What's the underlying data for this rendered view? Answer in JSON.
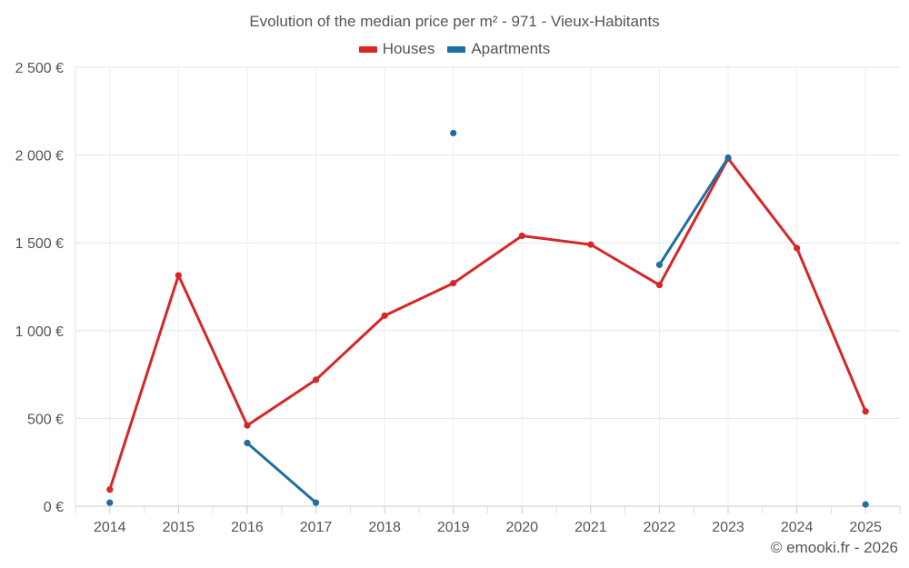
{
  "chart_data": {
    "type": "line",
    "title": "Evolution of the median price per m² - 971 - Vieux-Habitants",
    "categories": [
      "2014",
      "2015",
      "2016",
      "2017",
      "2018",
      "2019",
      "2020",
      "2021",
      "2022",
      "2023",
      "2024",
      "2025"
    ],
    "ylim": [
      0,
      2500
    ],
    "yticks": [
      0,
      500,
      1000,
      1500,
      2000,
      2500
    ],
    "ytick_labels": [
      "0 €",
      "500 €",
      "1 000 €",
      "1 500 €",
      "2 000 €",
      "2 500 €"
    ],
    "grid": true,
    "legend_position": "top-center",
    "series": [
      {
        "name": "Houses",
        "color": "#d62728",
        "values": [
          95,
          1315,
          460,
          720,
          1085,
          1270,
          1540,
          1490,
          1260,
          1980,
          1470,
          540
        ]
      },
      {
        "name": "Apartments",
        "color": "#1f6fa0",
        "values": [
          20,
          null,
          360,
          20,
          null,
          2125,
          null,
          null,
          1375,
          1985,
          null,
          10
        ]
      }
    ]
  },
  "credit": "© emooki.fr - 2026"
}
